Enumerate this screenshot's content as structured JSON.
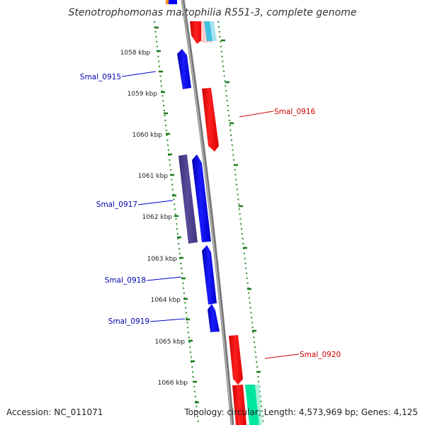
{
  "title": "Stenotrophomonas maltophilia R551-3, complete genome",
  "footer": {
    "accession": "Accession: NC_011071",
    "topology": "Topology: circular; Length: 4,573,969 bp; Genes: 4,125"
  },
  "ticks": [
    {
      "label": "1058 kbp"
    },
    {
      "label": "1059 kbp"
    },
    {
      "label": "1060 kbp"
    },
    {
      "label": "1061 kbp"
    },
    {
      "label": "1062 kbp"
    },
    {
      "label": "1063 kbp"
    },
    {
      "label": "1064 kbp"
    },
    {
      "label": "1065 kbp"
    },
    {
      "label": "1066 kbp"
    }
  ],
  "genes": [
    {
      "label": "Smal_0915",
      "strand": "minus",
      "color": "#0000cc"
    },
    {
      "label": "Smal_0916",
      "strand": "plus",
      "color": "#cc0000"
    },
    {
      "label": "Smal_0917",
      "strand": "minus",
      "color": "#0000cc"
    },
    {
      "label": "Smal_0918",
      "strand": "minus",
      "color": "#0000cc"
    },
    {
      "label": "Smal_0919",
      "strand": "minus",
      "color": "#0000cc"
    },
    {
      "label": "Smal_0920",
      "strand": "plus",
      "color": "#cc0000"
    }
  ],
  "colors": {
    "minus_gene": "#0000ff",
    "plus_gene": "#ff0000",
    "dark_gene": "#4a3a8a",
    "backbone": "#8a8a8a",
    "gc_dots": "#228b22"
  }
}
